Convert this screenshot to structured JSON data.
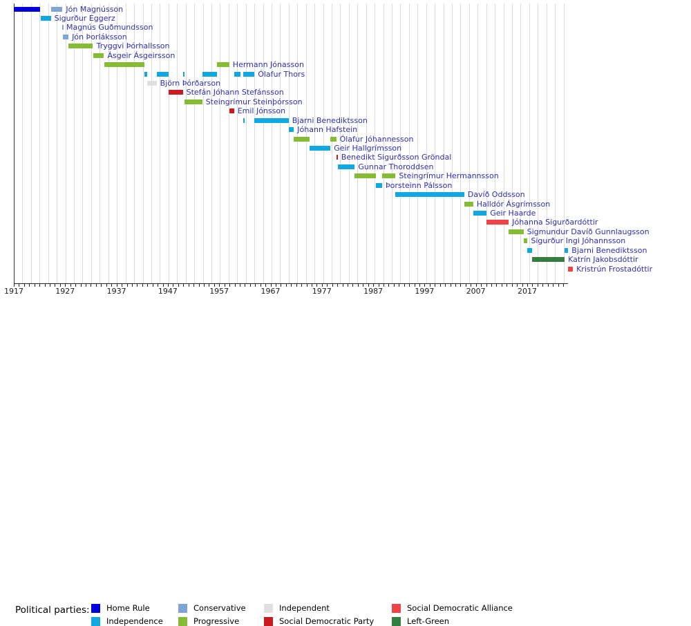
{
  "chart_data": {
    "type": "timeline",
    "title": "",
    "x_axis": {
      "min": 1917,
      "max": 2025.2,
      "ticks": [
        1917,
        1927,
        1937,
        1947,
        1957,
        1967,
        1977,
        1987,
        1997,
        2007,
        2017
      ],
      "minor_tick_every_years": 1,
      "grid": "vertical-light-gray"
    },
    "parties": {
      "homerule": {
        "label": "Home Rule",
        "color": "#0000dc"
      },
      "independence": {
        "label": "Independence",
        "color": "#12a7df"
      },
      "conservative": {
        "label": "Conservative",
        "color": "#7fa5d6"
      },
      "progressive": {
        "label": "Progressive",
        "color": "#85bb35"
      },
      "independent": {
        "label": "Independent",
        "color": "#e0e0e0"
      },
      "sdp": {
        "label": "Social Democratic Party",
        "color": "#cb1b21"
      },
      "sda": {
        "label": "Social Democratic Alliance",
        "color": "#ef4347"
      },
      "leftgreen": {
        "label": "Left-Green",
        "color": "#337f42"
      }
    },
    "prime_ministers": [
      {
        "name": "Jón Magnússon",
        "terms": [
          {
            "start": 1917.02,
            "end": 1922.18,
            "party": "homerule"
          },
          {
            "start": 1924.22,
            "end": 1926.47,
            "party": "conservative"
          }
        ]
      },
      {
        "name": "Sigurður Eggerz",
        "terms": [
          {
            "start": 1922.18,
            "end": 1924.22,
            "party": "independence"
          }
        ]
      },
      {
        "name": "Magnús Guðmundsson",
        "terms": [
          {
            "start": 1926.47,
            "end": 1926.55,
            "party": "conservative"
          }
        ]
      },
      {
        "name": "Jón Þorláksson",
        "terms": [
          {
            "start": 1926.55,
            "end": 1927.65,
            "party": "conservative"
          }
        ]
      },
      {
        "name": "Tryggvi Þórhallsson",
        "terms": [
          {
            "start": 1927.65,
            "end": 1932.42,
            "party": "progressive"
          }
        ]
      },
      {
        "name": "Ásgeir Ásgeirsson",
        "terms": [
          {
            "start": 1932.42,
            "end": 1934.56,
            "party": "progressive"
          }
        ]
      },
      {
        "name": "Hermann Jónasson",
        "terms": [
          {
            "start": 1934.56,
            "end": 1942.37,
            "party": "progressive"
          },
          {
            "start": 1956.56,
            "end": 1958.97,
            "party": "progressive"
          }
        ]
      },
      {
        "name": "Ólafur Thors",
        "terms": [
          {
            "start": 1942.37,
            "end": 1942.97,
            "party": "independence"
          },
          {
            "start": 1944.8,
            "end": 1947.1,
            "party": "independence"
          },
          {
            "start": 1949.92,
            "end": 1950.2,
            "party": "independence"
          },
          {
            "start": 1953.7,
            "end": 1956.56,
            "party": "independence"
          },
          {
            "start": 1959.9,
            "end": 1961.2,
            "party": "independence"
          },
          {
            "start": 1961.72,
            "end": 1963.87,
            "party": "independence"
          }
        ]
      },
      {
        "name": "Björn Þórðarson",
        "terms": [
          {
            "start": 1942.97,
            "end": 1944.8,
            "party": "independent"
          }
        ]
      },
      {
        "name": "Stefán Jóhann Stefánsson",
        "terms": [
          {
            "start": 1947.1,
            "end": 1949.92,
            "party": "sdp"
          }
        ]
      },
      {
        "name": "Steingrímur Steinþórsson",
        "terms": [
          {
            "start": 1950.2,
            "end": 1953.7,
            "party": "progressive"
          }
        ]
      },
      {
        "name": "Emil Jónsson",
        "terms": [
          {
            "start": 1958.97,
            "end": 1959.9,
            "party": "sdp"
          }
        ]
      },
      {
        "name": "Bjarni Benediktsson",
        "terms": [
          {
            "start": 1961.72,
            "end": 1962.0,
            "party": "independence"
          },
          {
            "start": 1963.87,
            "end": 1970.53,
            "party": "independence"
          }
        ]
      },
      {
        "name": "Jóhann Hafstein",
        "terms": [
          {
            "start": 1970.53,
            "end": 1971.55,
            "party": "independence"
          }
        ]
      },
      {
        "name": "Ólafur Jóhannesson",
        "terms": [
          {
            "start": 1971.55,
            "end": 1974.66,
            "party": "progressive"
          },
          {
            "start": 1978.67,
            "end": 1979.8,
            "party": "progressive"
          }
        ]
      },
      {
        "name": "Geir Hallgrímsson",
        "terms": [
          {
            "start": 1974.66,
            "end": 1978.67,
            "party": "independence"
          }
        ]
      },
      {
        "name": "Benedikt Sigurðsson Gröndal",
        "terms": [
          {
            "start": 1979.8,
            "end": 1980.1,
            "party": "sdp"
          }
        ]
      },
      {
        "name": "Gunnar Thoroddsen",
        "terms": [
          {
            "start": 1980.1,
            "end": 1983.4,
            "party": "independence"
          }
        ]
      },
      {
        "name": "Steingrímur Hermannsson",
        "terms": [
          {
            "start": 1983.4,
            "end": 1987.52,
            "party": "progressive"
          },
          {
            "start": 1988.74,
            "end": 1991.35,
            "party": "progressive"
          }
        ]
      },
      {
        "name": "Þorsteinn Pálsson",
        "terms": [
          {
            "start": 1987.52,
            "end": 1988.74,
            "party": "independence"
          }
        ]
      },
      {
        "name": "Davíð Oddsson",
        "terms": [
          {
            "start": 1991.35,
            "end": 2004.72,
            "party": "independence"
          }
        ]
      },
      {
        "name": "Halldór Ásgrímsson",
        "terms": [
          {
            "start": 2004.72,
            "end": 2006.46,
            "party": "progressive"
          }
        ]
      },
      {
        "name": "Geir Haarde",
        "terms": [
          {
            "start": 2006.46,
            "end": 2009.09,
            "party": "independence"
          }
        ]
      },
      {
        "name": "Jóhanna Sigurðardóttir",
        "terms": [
          {
            "start": 2009.09,
            "end": 2013.4,
            "party": "sda"
          }
        ]
      },
      {
        "name": "Sigmundur Davíð Gunnlaugsson",
        "terms": [
          {
            "start": 2013.4,
            "end": 2016.27,
            "party": "progressive"
          }
        ]
      },
      {
        "name": "Sigurður Ingi Jóhannsson",
        "terms": [
          {
            "start": 2016.27,
            "end": 2017.05,
            "party": "progressive"
          }
        ]
      },
      {
        "name": "Bjarni Benediktsson",
        "terms": [
          {
            "start": 2017.05,
            "end": 2017.92,
            "party": "independence"
          },
          {
            "start": 2024.28,
            "end": 2024.98,
            "party": "independence"
          }
        ]
      },
      {
        "name": "Katrín Jakobsdóttir",
        "terms": [
          {
            "start": 2017.92,
            "end": 2024.28,
            "party": "leftgreen"
          }
        ]
      },
      {
        "name": "Kristrún Frostadóttir",
        "terms": [
          {
            "start": 2024.98,
            "end": 2025.9,
            "party": "sda"
          }
        ]
      }
    ]
  },
  "legend": {
    "heading": "Political parties:",
    "columns": [
      [
        "homerule",
        "independence"
      ],
      [
        "conservative",
        "progressive"
      ],
      [
        "independent",
        "sdp"
      ],
      [
        "sda",
        "leftgreen"
      ]
    ]
  },
  "colors": {
    "pm_label_text": "#2e2eb8",
    "gridline": "#dcdcdc",
    "axis": "#222222"
  }
}
